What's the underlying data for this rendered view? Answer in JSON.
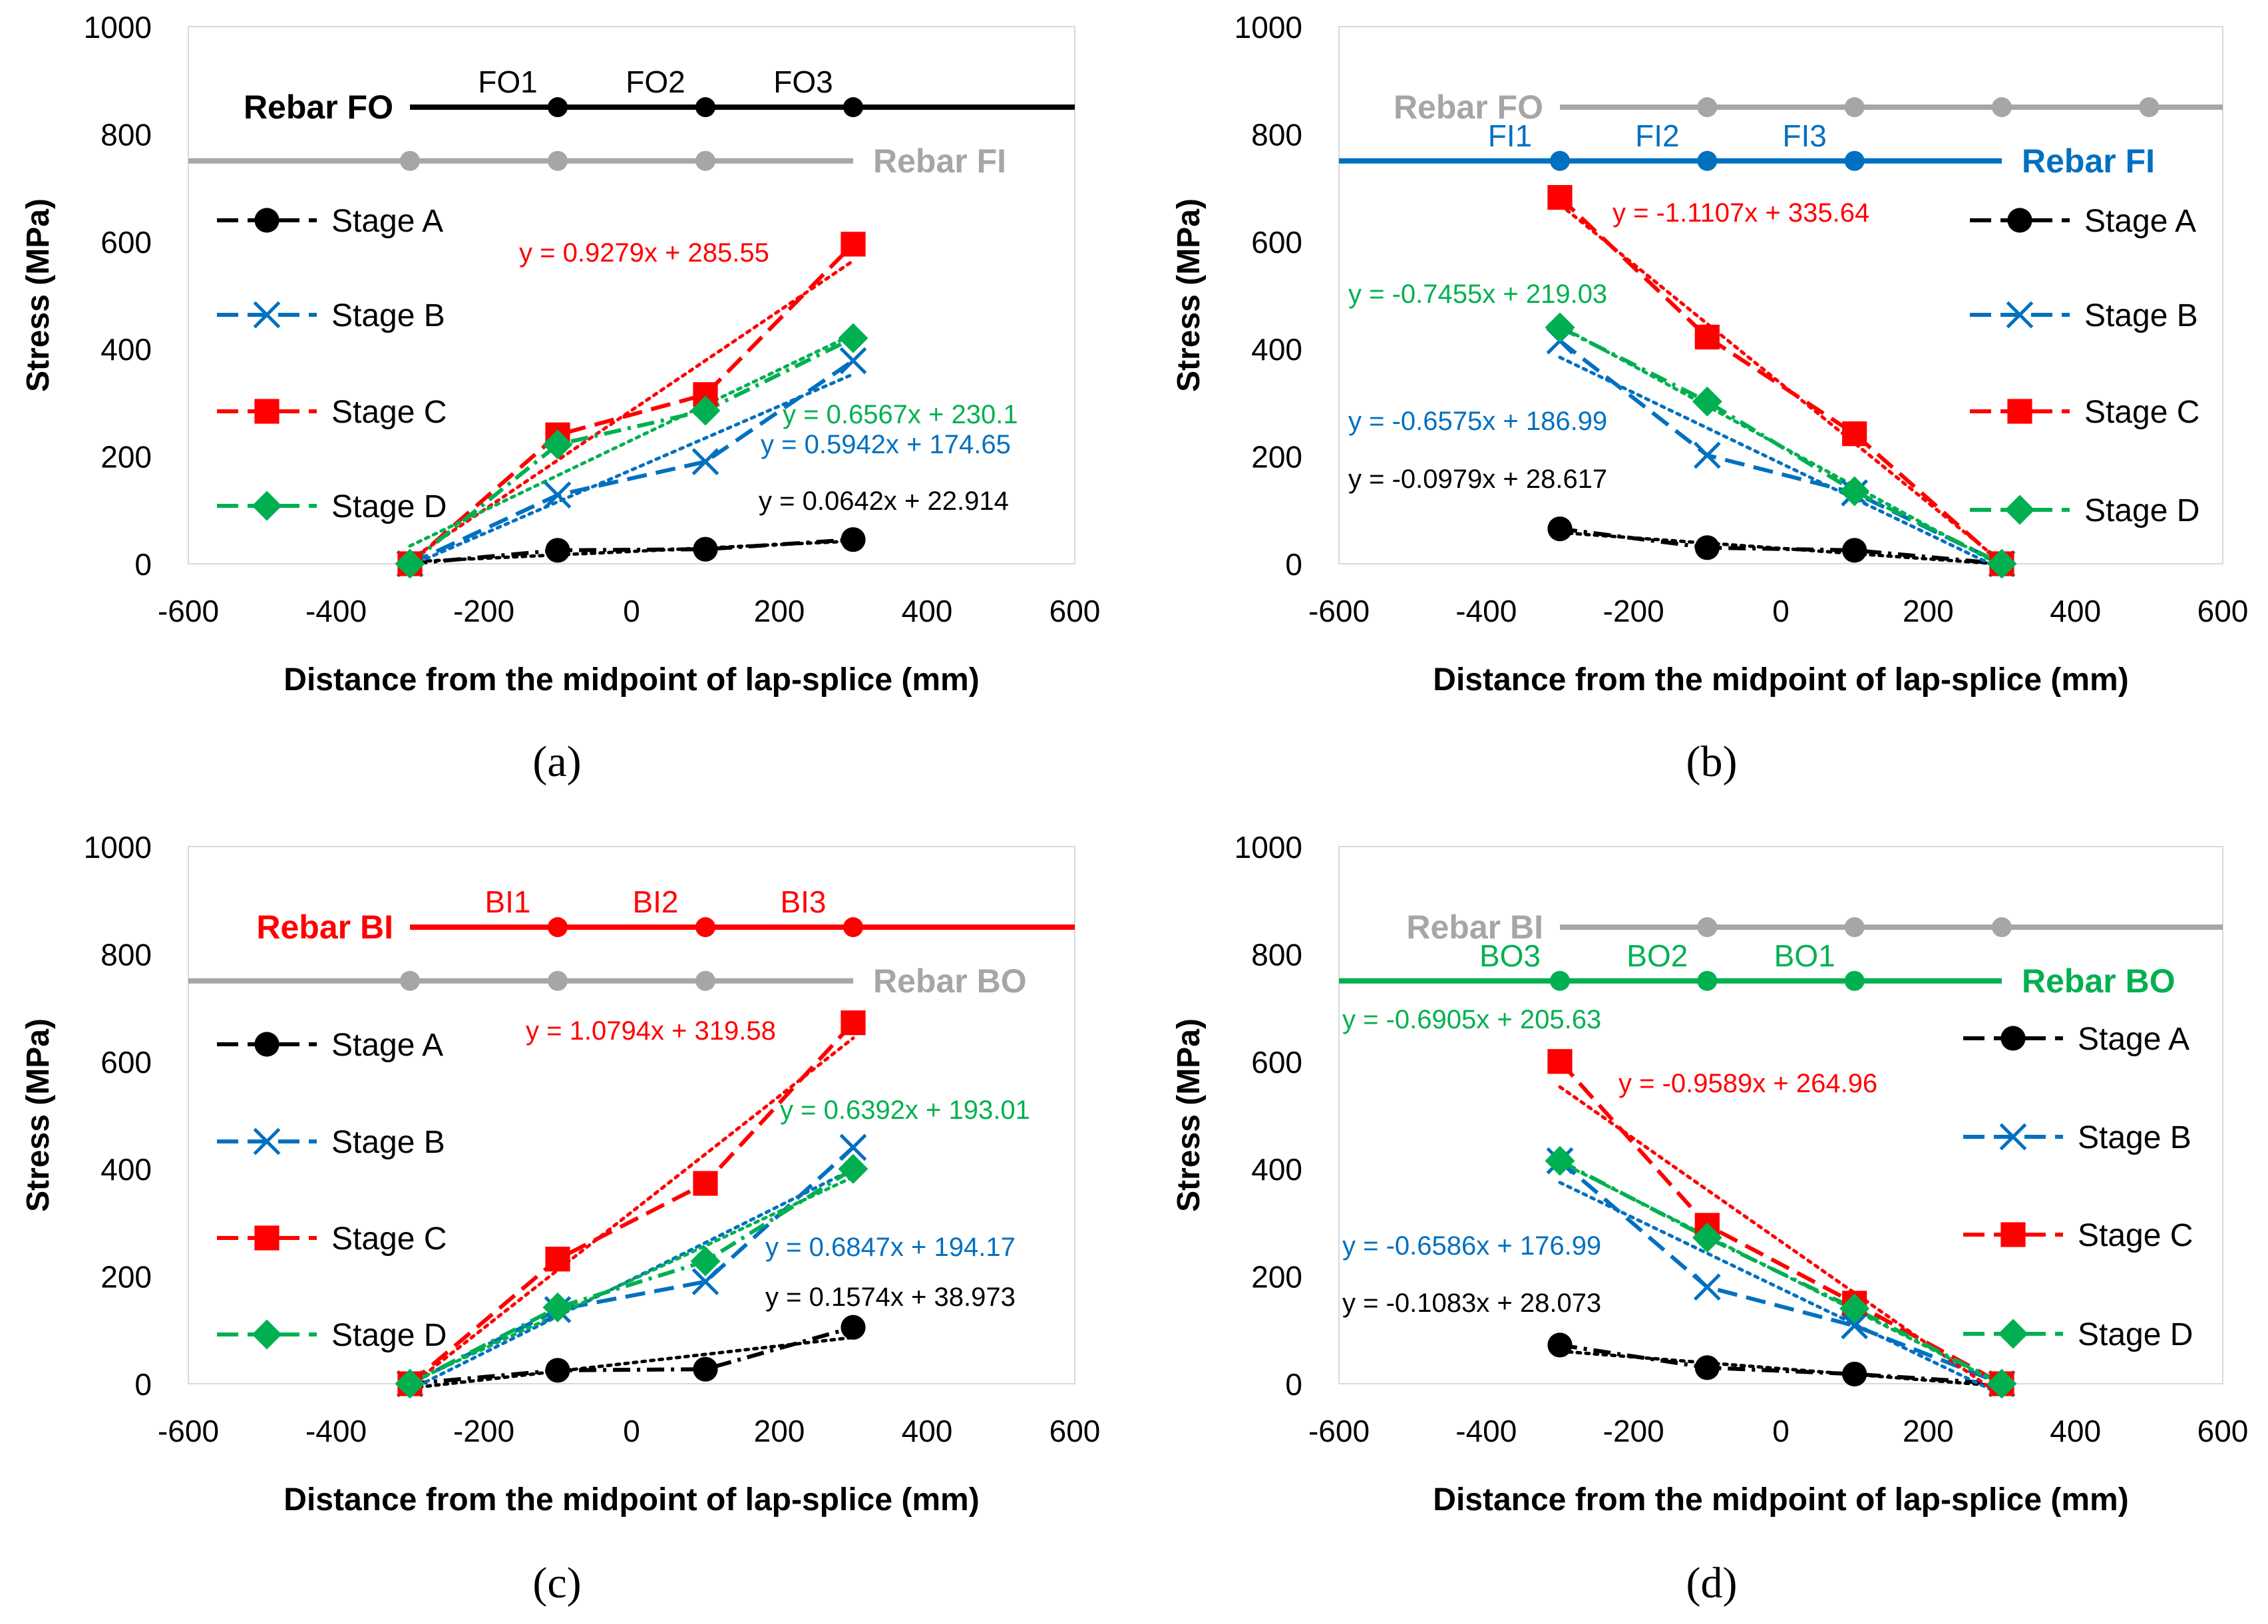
{
  "chart_data": [
    {
      "panel": "(a)",
      "type": "line",
      "xlabel": "Distance from the midpoint of lap-splice (mm)",
      "ylabel": "Stress (MPa)",
      "xlim": [
        -600,
        600
      ],
      "ylim": [
        0,
        1000
      ],
      "xticks": [
        -600,
        -400,
        -200,
        0,
        200,
        400,
        600
      ],
      "yticks": [
        0,
        200,
        400,
        600,
        800,
        1000
      ],
      "legend_position": "left",
      "rebar_top": {
        "label": "Rebar FO",
        "y": 850,
        "x_from": -300,
        "x_to": 600,
        "points": [
          -100,
          100,
          300
        ],
        "point_labels": [
          "FO1",
          "FO2",
          "FO3"
        ],
        "color": "#000000",
        "label_side": "left"
      },
      "rebar_bottom": {
        "label": "Rebar FI",
        "y": 750,
        "x_from": -600,
        "x_to": 300,
        "points": [
          -300,
          -100,
          100
        ],
        "point_labels": [],
        "color": "#a6a6a6",
        "label_side": "right"
      },
      "series": [
        {
          "name": "Stage A",
          "marker": "circle",
          "color": "#000000",
          "x": [
            -300,
            -100,
            100,
            300
          ],
          "y": [
            0,
            25,
            27,
            45
          ],
          "trend": {
            "slope": 0.0642,
            "intercept": 22.914,
            "label": "y = 0.0642x + 22.914"
          }
        },
        {
          "name": "Stage B",
          "marker": "x",
          "color": "#0070c0",
          "x": [
            -300,
            -100,
            100,
            300
          ],
          "y": [
            0,
            128,
            190,
            378
          ],
          "trend": {
            "slope": 0.5942,
            "intercept": 174.65,
            "label": "y = 0.5942x + 174.65"
          }
        },
        {
          "name": "Stage C",
          "marker": "square",
          "color": "#ff0000",
          "x": [
            -300,
            -100,
            100,
            300
          ],
          "y": [
            0,
            240,
            315,
            595
          ],
          "trend": {
            "slope": 0.9279,
            "intercept": 285.55,
            "label": "y = 0.9279x + 285.55"
          }
        },
        {
          "name": "Stage D",
          "marker": "diamond",
          "color": "#00b050",
          "x": [
            -300,
            -100,
            100,
            300
          ],
          "y": [
            0,
            222,
            285,
            420
          ],
          "trend": {
            "slope": 0.6567,
            "intercept": 230.1,
            "label": "y = 0.6567x + 230.1"
          }
        }
      ]
    },
    {
      "panel": "(b)",
      "type": "line",
      "xlabel": "Distance from the midpoint of lap-splice (mm)",
      "ylabel": "Stress (MPa)",
      "xlim": [
        -600,
        600
      ],
      "ylim": [
        0,
        1000
      ],
      "xticks": [
        -600,
        -400,
        -200,
        0,
        200,
        400,
        600
      ],
      "yticks": [
        0,
        200,
        400,
        600,
        800,
        1000
      ],
      "legend_position": "right",
      "rebar_top": {
        "label": "Rebar FO",
        "y": 850,
        "x_from": -300,
        "x_to": 600,
        "points": [
          -100,
          100,
          300,
          500
        ],
        "point_labels": [],
        "color": "#a6a6a6",
        "label_side": "left"
      },
      "rebar_bottom": {
        "label": "Rebar FI",
        "y": 750,
        "x_from": -600,
        "x_to": 300,
        "points": [
          -300,
          -100,
          100
        ],
        "point_labels": [
          "FI1",
          "FI2",
          "FI3"
        ],
        "color": "#0070c0",
        "label_side": "right"
      },
      "series": [
        {
          "name": "Stage A",
          "marker": "circle",
          "color": "#000000",
          "x": [
            -300,
            -100,
            100,
            300
          ],
          "y": [
            65,
            30,
            25,
            0
          ],
          "trend": {
            "slope": -0.0979,
            "intercept": 28.617,
            "label": "y = -0.0979x + 28.617"
          }
        },
        {
          "name": "Stage B",
          "marker": "x",
          "color": "#0070c0",
          "x": [
            -300,
            -100,
            100,
            300
          ],
          "y": [
            415,
            202,
            132,
            0
          ],
          "trend": {
            "slope": -0.6575,
            "intercept": 186.99,
            "label": "y = -0.6575x + 186.99"
          }
        },
        {
          "name": "Stage C",
          "marker": "square",
          "color": "#ff0000",
          "x": [
            -300,
            -100,
            100,
            300
          ],
          "y": [
            682,
            422,
            242,
            0
          ],
          "trend": {
            "slope": -1.1107,
            "intercept": 335.64,
            "label": "y = -1.1107x + 335.64"
          }
        },
        {
          "name": "Stage D",
          "marker": "diamond",
          "color": "#00b050",
          "x": [
            -300,
            -100,
            100,
            300
          ],
          "y": [
            440,
            302,
            135,
            0
          ],
          "trend": {
            "slope": -0.7455,
            "intercept": 219.03,
            "label": "y = -0.7455x + 219.03"
          }
        }
      ]
    },
    {
      "panel": "(c)",
      "type": "line",
      "xlabel": "Distance from the midpoint of lap-splice (mm)",
      "ylabel": "Stress (MPa)",
      "xlim": [
        -600,
        600
      ],
      "ylim": [
        0,
        1000
      ],
      "xticks": [
        -600,
        -400,
        -200,
        0,
        200,
        400,
        600
      ],
      "yticks": [
        0,
        200,
        400,
        600,
        800,
        1000
      ],
      "legend_position": "left",
      "rebar_top": {
        "label": "Rebar BI",
        "y": 850,
        "x_from": -300,
        "x_to": 600,
        "points": [
          -100,
          100,
          300
        ],
        "point_labels": [
          "BI1",
          "BI2",
          "BI3"
        ],
        "color": "#ff0000",
        "label_side": "left"
      },
      "rebar_bottom": {
        "label": "Rebar BO",
        "y": 750,
        "x_from": -600,
        "x_to": 300,
        "points": [
          -300,
          -100,
          100
        ],
        "point_labels": [],
        "color": "#a6a6a6",
        "label_side": "right"
      },
      "series": [
        {
          "name": "Stage A",
          "marker": "circle",
          "color": "#000000",
          "x": [
            -300,
            -100,
            100,
            300
          ],
          "y": [
            0,
            25,
            27,
            105
          ],
          "trend": {
            "slope": 0.1574,
            "intercept": 38.973,
            "label": "y = 0.1574x + 38.973"
          }
        },
        {
          "name": "Stage B",
          "marker": "x",
          "color": "#0070c0",
          "x": [
            -300,
            -100,
            100,
            300
          ],
          "y": [
            0,
            138,
            190,
            440
          ],
          "trend": {
            "slope": 0.6847,
            "intercept": 194.17,
            "label": "y = 0.6847x + 194.17"
          }
        },
        {
          "name": "Stage C",
          "marker": "square",
          "color": "#ff0000",
          "x": [
            -300,
            -100,
            100,
            300
          ],
          "y": [
            0,
            232,
            373,
            672
          ],
          "trend": {
            "slope": 1.0794,
            "intercept": 319.58,
            "label": "y = 1.0794x + 319.58"
          }
        },
        {
          "name": "Stage D",
          "marker": "diamond",
          "color": "#00b050",
          "x": [
            -300,
            -100,
            100,
            300
          ],
          "y": [
            0,
            142,
            228,
            400
          ],
          "trend": {
            "slope": 0.6392,
            "intercept": 193.01,
            "label": "y = 0.6392x + 193.01"
          }
        }
      ]
    },
    {
      "panel": "(d)",
      "type": "line",
      "xlabel": "Distance from the midpoint of lap-splice (mm)",
      "ylabel": "Stress (MPa)",
      "xlim": [
        -600,
        600
      ],
      "ylim": [
        0,
        1000
      ],
      "xticks": [
        -600,
        -400,
        -200,
        0,
        200,
        400,
        600
      ],
      "yticks": [
        0,
        200,
        400,
        600,
        800,
        1000
      ],
      "legend_position": "right",
      "rebar_top": {
        "label": "Rebar BI",
        "y": 850,
        "x_from": -300,
        "x_to": 600,
        "points": [
          -100,
          100,
          300
        ],
        "point_labels": [],
        "color": "#a6a6a6",
        "label_side": "left"
      },
      "rebar_bottom": {
        "label": "Rebar BO",
        "y": 750,
        "x_from": -600,
        "x_to": 300,
        "points": [
          -300,
          -100,
          100
        ],
        "point_labels": [
          "BO3",
          "BO2",
          "BO1"
        ],
        "color": "#00b050",
        "label_side": "right"
      },
      "series": [
        {
          "name": "Stage A",
          "marker": "circle",
          "color": "#000000",
          "x": [
            -300,
            -100,
            100,
            300
          ],
          "y": [
            72,
            30,
            18,
            0
          ],
          "trend": {
            "slope": -0.1083,
            "intercept": 28.073,
            "label": "y = -0.1083x + 28.073"
          }
        },
        {
          "name": "Stage B",
          "marker": "x",
          "color": "#0070c0",
          "x": [
            -300,
            -100,
            100,
            300
          ],
          "y": [
            415,
            180,
            108,
            0
          ],
          "trend": {
            "slope": -0.6586,
            "intercept": 176.99,
            "label": "y = -0.6586x + 176.99"
          }
        },
        {
          "name": "Stage C",
          "marker": "square",
          "color": "#ff0000",
          "x": [
            -300,
            -100,
            100,
            300
          ],
          "y": [
            600,
            295,
            150,
            0
          ],
          "trend": {
            "slope": -0.9589,
            "intercept": 264.96,
            "label": "y = -0.9589x + 264.96"
          }
        },
        {
          "name": "Stage D",
          "marker": "diamond",
          "color": "#00b050",
          "x": [
            -300,
            -100,
            100,
            300
          ],
          "y": [
            415,
            272,
            140,
            0
          ],
          "trend": {
            "slope": -0.6905,
            "intercept": 205.63,
            "label": "y = -0.6905x + 205.63"
          }
        }
      ]
    }
  ]
}
